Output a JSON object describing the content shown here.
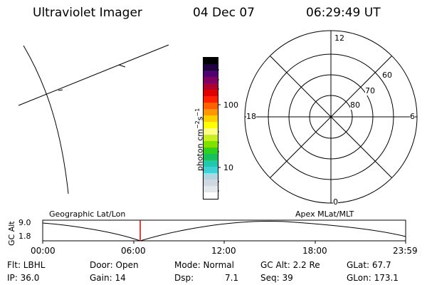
{
  "header": {
    "title": "Ultraviolet Imager",
    "date": "04 Dec 07",
    "time": "06:29:49 UT"
  },
  "colorbar": {
    "label": "photon cm^-2 s^-1",
    "label_main": "photon cm",
    "label_exp1": "−2",
    "label_s": "s",
    "label_exp2": "−1",
    "tick_100": "100",
    "tick_10": "10",
    "colors": [
      "#ffffff",
      "#e4e8ec",
      "#cfd8e0",
      "#b0d6e0",
      "#40d0d8",
      "#20c8b0",
      "#18c060",
      "#30d020",
      "#80e000",
      "#c8f020",
      "#ffff80",
      "#ffff00",
      "#ffd000",
      "#ff9800",
      "#ff6000",
      "#ff2000",
      "#e00000",
      "#b00030",
      "#800060",
      "#500070",
      "#200040",
      "#000000"
    ]
  },
  "polar": {
    "label_top": "12",
    "label_bottom": "0",
    "label_left": "18",
    "label_right": "6",
    "lat_60": "60",
    "lat_70": "70",
    "lat_80": "80"
  },
  "timeline": {
    "ylabel": "GC Alt",
    "ytick_high": "9.0",
    "ytick_low": "1.8",
    "left_title": "Geographic Lat/Lon",
    "right_title": "Apex MLat/MLT",
    "xticks": [
      "00:00",
      "06:00",
      "12:00",
      "18:00",
      "23:59"
    ],
    "marker_time": "06:29:49"
  },
  "info": {
    "flt": "Flt: LBHL",
    "ip": "IP: 36.0",
    "door": "Door: Open",
    "gain": "Gain: 14",
    "mode": "Mode: Normal",
    "dsp_label": "Dsp:",
    "dsp_value": "7.1",
    "gcalt": "GC Alt: 2.2 Re",
    "seq": "Seq: 39",
    "glat": "GLat:  67.7",
    "glon": "GLon: 173.1"
  },
  "colors": {
    "marker": "#e00000",
    "ink": "#000000"
  }
}
